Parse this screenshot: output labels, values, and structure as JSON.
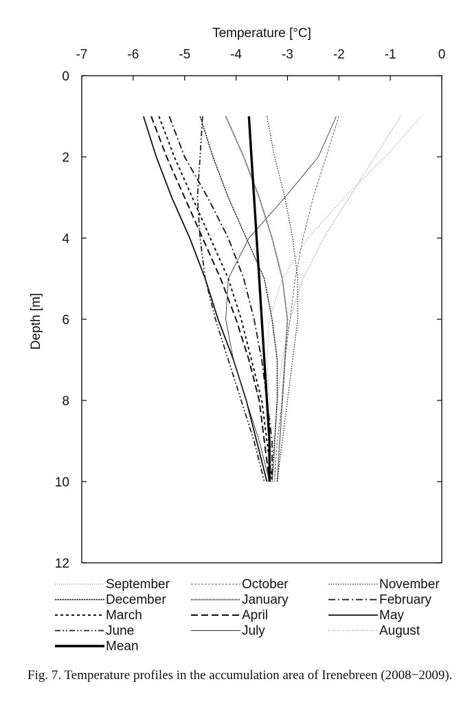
{
  "chart_data": {
    "type": "line",
    "title": "",
    "xlabel": "Temperature [°C]",
    "ylabel": "Depth [m]",
    "xlim": [
      -7,
      0
    ],
    "ylim": [
      12,
      0
    ],
    "x_axis_position": "top",
    "y_axis_inverted": true,
    "x_ticks": [
      "-7",
      "-6",
      "-5",
      "-4",
      "-3",
      "-2",
      "-1",
      "0"
    ],
    "y_ticks": [
      "0",
      "2",
      "4",
      "6",
      "8",
      "10",
      "12"
    ],
    "grid": false,
    "legend_position": "bottom",
    "series": [
      {
        "name": "September",
        "style": "dotted-fine",
        "points": [
          [
            -0.8,
            1
          ],
          [
            -1.3,
            2
          ],
          [
            -1.8,
            3
          ],
          [
            -2.3,
            4
          ],
          [
            -2.7,
            5
          ],
          [
            -2.95,
            6
          ],
          [
            -3.1,
            7
          ],
          [
            -3.2,
            8
          ],
          [
            -3.25,
            9
          ],
          [
            -3.25,
            10
          ]
        ]
      },
      {
        "name": "October",
        "style": "dashed-fine",
        "points": [
          [
            -2.0,
            1
          ],
          [
            -2.25,
            2
          ],
          [
            -2.5,
            3
          ],
          [
            -2.7,
            4
          ],
          [
            -2.85,
            5
          ],
          [
            -2.95,
            6
          ],
          [
            -3.05,
            7
          ],
          [
            -3.1,
            8
          ],
          [
            -3.2,
            9
          ],
          [
            -3.25,
            10
          ]
        ]
      },
      {
        "name": "November",
        "style": "dotted",
        "points": [
          [
            -3.4,
            1
          ],
          [
            -3.25,
            2
          ],
          [
            -3.05,
            3
          ],
          [
            -2.9,
            4
          ],
          [
            -2.8,
            5
          ],
          [
            -2.8,
            6
          ],
          [
            -2.9,
            7
          ],
          [
            -3.0,
            8
          ],
          [
            -3.1,
            9
          ],
          [
            -3.2,
            10
          ]
        ]
      },
      {
        "name": "December",
        "style": "dashed-dense",
        "points": [
          [
            -4.7,
            1
          ],
          [
            -4.45,
            2
          ],
          [
            -4.15,
            3
          ],
          [
            -3.8,
            4
          ],
          [
            -3.45,
            5
          ],
          [
            -3.3,
            6
          ],
          [
            -3.2,
            7
          ],
          [
            -3.2,
            8
          ],
          [
            -3.25,
            9
          ],
          [
            -3.3,
            10
          ]
        ]
      },
      {
        "name": "January",
        "style": "dotted-dense",
        "points": [
          [
            -4.2,
            1
          ],
          [
            -3.85,
            2
          ],
          [
            -3.55,
            3
          ],
          [
            -3.3,
            4
          ],
          [
            -3.1,
            5
          ],
          [
            -3.0,
            6
          ],
          [
            -3.05,
            7
          ],
          [
            -3.1,
            8
          ],
          [
            -3.15,
            9
          ],
          [
            -3.2,
            10
          ]
        ]
      },
      {
        "name": "February",
        "style": "dash-dot",
        "points": [
          [
            -5.3,
            1
          ],
          [
            -5.0,
            2
          ],
          [
            -4.55,
            3
          ],
          [
            -4.15,
            4
          ],
          [
            -3.85,
            5
          ],
          [
            -3.65,
            6
          ],
          [
            -3.5,
            7
          ],
          [
            -3.4,
            8
          ],
          [
            -3.3,
            9
          ],
          [
            -3.3,
            10
          ]
        ]
      },
      {
        "name": "March",
        "style": "dashed-short",
        "points": [
          [
            -5.5,
            1
          ],
          [
            -5.2,
            2
          ],
          [
            -4.85,
            3
          ],
          [
            -4.5,
            4
          ],
          [
            -4.15,
            5
          ],
          [
            -3.9,
            6
          ],
          [
            -3.7,
            7
          ],
          [
            -3.5,
            8
          ],
          [
            -3.4,
            9
          ],
          [
            -3.3,
            10
          ]
        ]
      },
      {
        "name": "April",
        "style": "dashed-long",
        "points": [
          [
            -5.65,
            1
          ],
          [
            -5.35,
            2
          ],
          [
            -5.0,
            3
          ],
          [
            -4.65,
            4
          ],
          [
            -4.3,
            5
          ],
          [
            -4.0,
            6
          ],
          [
            -3.75,
            7
          ],
          [
            -3.55,
            8
          ],
          [
            -3.45,
            9
          ],
          [
            -3.35,
            10
          ]
        ]
      },
      {
        "name": "May",
        "style": "solid-medium",
        "points": [
          [
            -5.8,
            1
          ],
          [
            -5.55,
            2
          ],
          [
            -5.25,
            3
          ],
          [
            -4.9,
            4
          ],
          [
            -4.6,
            5
          ],
          [
            -4.35,
            6
          ],
          [
            -4.05,
            7
          ],
          [
            -3.8,
            8
          ],
          [
            -3.6,
            9
          ],
          [
            -3.4,
            10
          ]
        ]
      },
      {
        "name": "June",
        "style": "dash-dot-dot",
        "points": [
          [
            -4.65,
            1
          ],
          [
            -4.7,
            2
          ],
          [
            -4.75,
            3
          ],
          [
            -4.7,
            4
          ],
          [
            -4.6,
            5
          ],
          [
            -4.4,
            6
          ],
          [
            -4.15,
            7
          ],
          [
            -3.9,
            8
          ],
          [
            -3.65,
            9
          ],
          [
            -3.45,
            10
          ]
        ]
      },
      {
        "name": "July",
        "style": "solid-thin",
        "points": [
          [
            -2.05,
            1
          ],
          [
            -2.4,
            2
          ],
          [
            -3.05,
            3
          ],
          [
            -3.75,
            4
          ],
          [
            -4.15,
            5
          ],
          [
            -4.2,
            6
          ],
          [
            -4.05,
            7
          ],
          [
            -3.8,
            8
          ],
          [
            -3.55,
            9
          ],
          [
            -3.35,
            10
          ]
        ]
      },
      {
        "name": "August",
        "style": "dotted-faint",
        "points": [
          [
            -0.4,
            1
          ],
          [
            -1.1,
            2
          ],
          [
            -1.9,
            3
          ],
          [
            -2.6,
            4
          ],
          [
            -3.1,
            5
          ],
          [
            -3.35,
            6
          ],
          [
            -3.4,
            7
          ],
          [
            -3.35,
            8
          ],
          [
            -3.3,
            9
          ],
          [
            -3.25,
            10
          ]
        ]
      },
      {
        "name": "Mean",
        "style": "solid-thick",
        "points": [
          [
            -3.75,
            1
          ],
          [
            -3.7,
            2
          ],
          [
            -3.65,
            3
          ],
          [
            -3.6,
            4
          ],
          [
            -3.55,
            5
          ],
          [
            -3.5,
            6
          ],
          [
            -3.45,
            7
          ],
          [
            -3.4,
            8
          ],
          [
            -3.35,
            9
          ],
          [
            -3.35,
            10
          ]
        ]
      }
    ]
  },
  "caption": "Fig. 7. Temperature profiles in the accumulation area of Irenebreen (2008−2009)."
}
